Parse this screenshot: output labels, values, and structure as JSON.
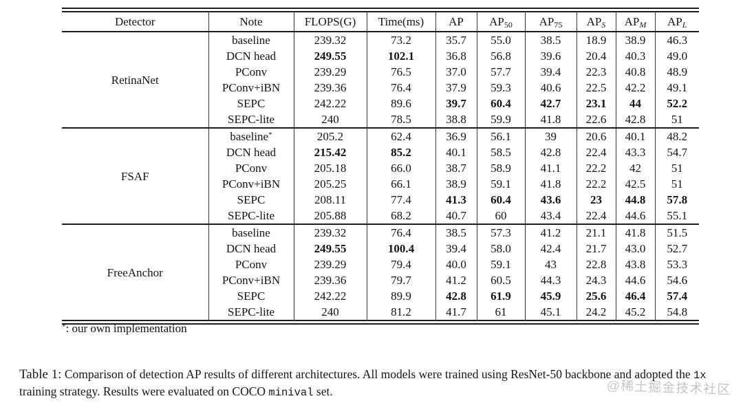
{
  "table": {
    "columns": [
      {
        "base": "Detector",
        "sub": ""
      },
      {
        "base": "Note",
        "sub": ""
      },
      {
        "base": "FLOPS(G)",
        "sub": ""
      },
      {
        "base": "Time(ms)",
        "sub": ""
      },
      {
        "base": "AP",
        "sub": ""
      },
      {
        "base": "AP",
        "sub": "50"
      },
      {
        "base": "AP",
        "sub": "75"
      },
      {
        "base": "AP",
        "sub": "S"
      },
      {
        "base": "AP",
        "sub": "M"
      },
      {
        "base": "AP",
        "sub": "L"
      }
    ],
    "groups": [
      {
        "detector": "RetinaNet",
        "rows": [
          {
            "note": "baseline",
            "flops": "239.32",
            "time": "73.2",
            "ap": "35.7",
            "ap50": "55.0",
            "ap75": "38.5",
            "aps": "18.9",
            "apm": "38.9",
            "apl": "46.3",
            "bold": []
          },
          {
            "note": "DCN head",
            "flops": "249.55",
            "time": "102.1",
            "ap": "36.8",
            "ap50": "56.8",
            "ap75": "39.6",
            "aps": "20.4",
            "apm": "40.3",
            "apl": "49.0",
            "bold": [
              "flops",
              "time"
            ]
          },
          {
            "note": "PConv",
            "flops": "239.29",
            "time": "76.5",
            "ap": "37.0",
            "ap50": "57.7",
            "ap75": "39.4",
            "aps": "22.3",
            "apm": "40.8",
            "apl": "48.9",
            "bold": []
          },
          {
            "note": "PConv+iBN",
            "flops": "239.36",
            "time": "76.4",
            "ap": "37.9",
            "ap50": "59.3",
            "ap75": "40.6",
            "aps": "22.5",
            "apm": "42.2",
            "apl": "49.1",
            "bold": []
          },
          {
            "note": "SEPC",
            "flops": "242.22",
            "time": "89.6",
            "ap": "39.7",
            "ap50": "60.4",
            "ap75": "42.7",
            "aps": "23.1",
            "apm": "44",
            "apl": "52.2",
            "bold": [
              "ap",
              "ap50",
              "ap75",
              "aps",
              "apm",
              "apl"
            ]
          },
          {
            "note": "SEPC-lite",
            "flops": "240",
            "time": "78.5",
            "ap": "38.8",
            "ap50": "59.9",
            "ap75": "41.8",
            "aps": "22.6",
            "apm": "42.8",
            "apl": "51",
            "bold": []
          }
        ]
      },
      {
        "detector": "FSAF",
        "rows": [
          {
            "note": "baseline",
            "note_sup": "*",
            "flops": "205.2",
            "time": "62.4",
            "ap": "36.9",
            "ap50": "56.1",
            "ap75": "39",
            "aps": "20.6",
            "apm": "40.1",
            "apl": "48.2",
            "bold": []
          },
          {
            "note": "DCN head",
            "flops": "215.42",
            "time": "85.2",
            "ap": "40.1",
            "ap50": "58.5",
            "ap75": "42.8",
            "aps": "22.4",
            "apm": "43.3",
            "apl": "54.7",
            "bold": [
              "flops",
              "time"
            ]
          },
          {
            "note": "PConv",
            "flops": "205.18",
            "time": "66.0",
            "ap": "38.7",
            "ap50": "58.9",
            "ap75": "41.1",
            "aps": "22.2",
            "apm": "42",
            "apl": "51",
            "bold": []
          },
          {
            "note": "PConv+iBN",
            "flops": "205.25",
            "time": "66.1",
            "ap": "38.9",
            "ap50": "59.1",
            "ap75": "41.8",
            "aps": "22.2",
            "apm": "42.5",
            "apl": "51",
            "bold": []
          },
          {
            "note": "SEPC",
            "flops": "208.11",
            "time": "77.4",
            "ap": "41.3",
            "ap50": "60.4",
            "ap75": "43.6",
            "aps": "23",
            "apm": "44.8",
            "apl": "57.8",
            "bold": [
              "ap",
              "ap50",
              "ap75",
              "aps",
              "apm",
              "apl"
            ]
          },
          {
            "note": "SEPC-lite",
            "flops": "205.88",
            "time": "68.2",
            "ap": "40.7",
            "ap50": "60",
            "ap75": "43.4",
            "aps": "22.4",
            "apm": "44.6",
            "apl": "55.1",
            "bold": []
          }
        ]
      },
      {
        "detector": "FreeAnchor",
        "rows": [
          {
            "note": "baseline",
            "flops": "239.32",
            "time": "76.4",
            "ap": "38.5",
            "ap50": "57.3",
            "ap75": "41.2",
            "aps": "21.1",
            "apm": "41.8",
            "apl": "51.5",
            "bold": []
          },
          {
            "note": "DCN head",
            "flops": "249.55",
            "time": "100.4",
            "ap": "39.4",
            "ap50": "58.0",
            "ap75": "42.4",
            "aps": "21.7",
            "apm": "43.0",
            "apl": "52.7",
            "bold": [
              "flops",
              "time"
            ]
          },
          {
            "note": "PConv",
            "flops": "239.29",
            "time": "79.4",
            "ap": "40.0",
            "ap50": "59.1",
            "ap75": "43",
            "aps": "22.8",
            "apm": "43.8",
            "apl": "53.3",
            "bold": []
          },
          {
            "note": "PConv+iBN",
            "flops": "239.36",
            "time": "79.7",
            "ap": "41.2",
            "ap50": "60.5",
            "ap75": "44.3",
            "aps": "24.3",
            "apm": "44.6",
            "apl": "54.6",
            "bold": []
          },
          {
            "note": "SEPC",
            "flops": "242.22",
            "time": "89.9",
            "ap": "42.8",
            "ap50": "61.9",
            "ap75": "45.9",
            "aps": "25.6",
            "apm": "46.4",
            "apl": "57.4",
            "bold": [
              "ap",
              "ap50",
              "ap75",
              "aps",
              "apm",
              "apl"
            ]
          },
          {
            "note": "SEPC-lite",
            "flops": "240",
            "time": "81.2",
            "ap": "41.7",
            "ap50": "61",
            "ap75": "45.1",
            "aps": "24.2",
            "apm": "45.2",
            "apl": "54.8",
            "bold": []
          }
        ]
      }
    ]
  },
  "footnote": {
    "sup": "*",
    "text": ": our own implementation"
  },
  "caption": {
    "label": "Table 1:",
    "text1": " Comparison of detection AP results of different architectures. All models were trained using ResNet-50 backbone and adopted the ",
    "mono1": "1x",
    "text2": " training strategy. Results were evaluated on COCO ",
    "mono2": "minival",
    "text3": " set."
  },
  "watermark": {
    "text": "@稀土掘金技术社区"
  },
  "colors": {
    "text": "#111111",
    "rule": "#1c1c1c",
    "watermark": "#c7c7c7",
    "background": "#ffffff"
  }
}
